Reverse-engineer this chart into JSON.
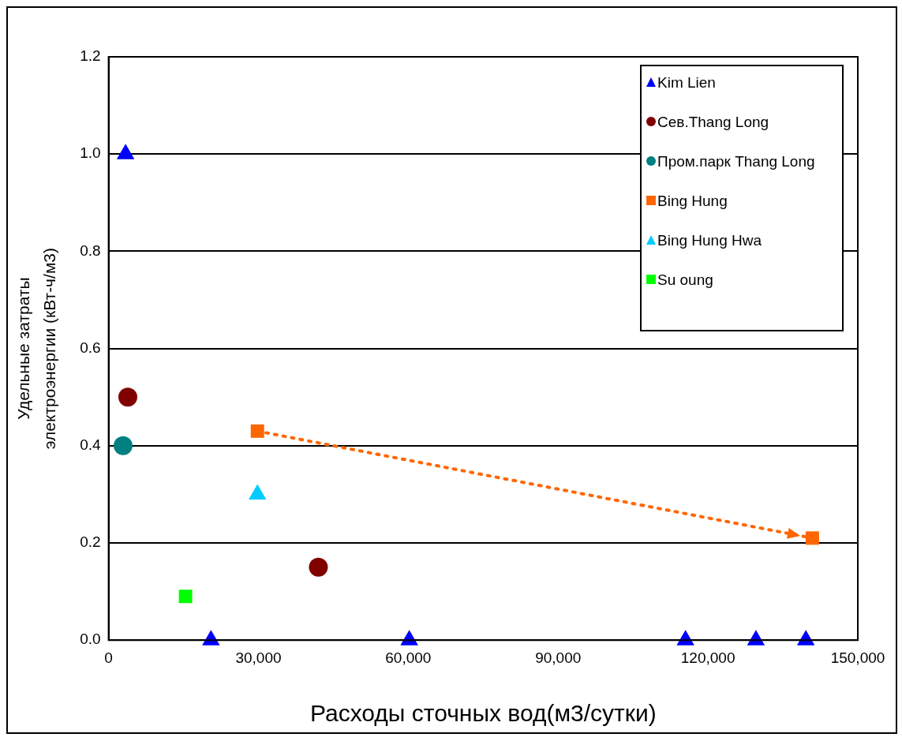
{
  "chart_data": {
    "type": "scatter",
    "xlabel": "Расходы сточных вод(м3/сутки)",
    "ylabel": "Удельные затраты\nэлектроэнергии (кВт-ч/м3)",
    "xlim": [
      0,
      150000
    ],
    "xticks": [
      {
        "value": 0,
        "label": "0"
      },
      {
        "value": 30000,
        "label": "30,000"
      },
      {
        "value": 60000,
        "label": "60,000"
      },
      {
        "value": 90000,
        "label": "90,000"
      },
      {
        "value": 120000,
        "label": "120,000"
      },
      {
        "value": 150000,
        "label": "150,000"
      }
    ],
    "ylim": [
      0,
      1.2
    ],
    "yticks": [
      {
        "value": 0,
        "label": "0.0"
      },
      0.2,
      0.4,
      0.6,
      0.8,
      {
        "value": 1,
        "label": "1.0"
      },
      1.2
    ],
    "grid": "y",
    "legend": "top right",
    "series": [
      {
        "name": "Kim Lien",
        "color": "#0000ff",
        "marker": "triangle",
        "x": [
          3400,
          20500,
          60200,
          115500,
          129600,
          139600
        ],
        "values": [
          1.0,
          0,
          0,
          0,
          0,
          0
        ]
      },
      {
        "name": "Сев.Thang Long",
        "color": "#800000",
        "marker": "circle",
        "x": [
          3850,
          42000
        ],
        "values": [
          0.5,
          0.15
        ]
      },
      {
        "name": "Пром.парк Thang Long",
        "color": "#008080",
        "marker": "circle",
        "x": [
          2900
        ],
        "values": [
          0.4
        ]
      },
      {
        "name": "Bing Hung",
        "type": "line",
        "color": "#ff6600",
        "marker": "square",
        "line_style": "dotted",
        "x": [
          29800,
          140900
        ],
        "values": [
          0.43,
          0.21
        ]
      },
      {
        "name": "Bing Hung Hwa",
        "color": "#00ccff",
        "marker": "triangle",
        "x": [
          29800
        ],
        "values": [
          0.3
        ]
      },
      {
        "name": "Su oung",
        "color": "#00ff00",
        "marker": "square",
        "x": [
          15400
        ],
        "values": [
          0.09
        ]
      }
    ]
  }
}
